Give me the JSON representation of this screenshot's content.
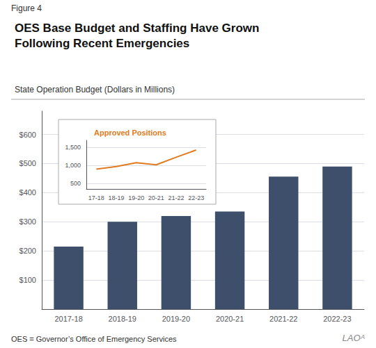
{
  "chart_data": [
    {
      "type": "bar",
      "title": "OES Base Budget and Staffing Have Grown\nFollowing Recent Emergencies",
      "subtitle": "State Operation Budget (Dollars in Millions)",
      "annotations": [
        "Figure 4",
        "OES = Governor’s Office of Emergency Services",
        "LAOᴬ"
      ],
      "categories": [
        "2017-18",
        "2018-19",
        "2019-20",
        "2020-21",
        "2021-22",
        "2022-23"
      ],
      "values": [
        215,
        300,
        320,
        335,
        455,
        490
      ],
      "color": "#3d4f6b",
      "ylim": [
        0,
        680
      ],
      "yticks": [
        {
          "value": 100,
          "label": "$100"
        },
        {
          "value": 200,
          "label": "$200"
        },
        {
          "value": 300,
          "label": "$300"
        },
        {
          "value": 400,
          "label": "$400"
        },
        {
          "value": 500,
          "label": "$500"
        },
        {
          "value": 600,
          "label": "$600"
        }
      ],
      "grid": true
    },
    {
      "type": "line",
      "title": "Approved Positions",
      "categories": [
        "17-18",
        "18-19",
        "19-20",
        "20-21",
        "21-22",
        "22-23"
      ],
      "values": [
        900,
        970,
        1080,
        1020,
        1230,
        1430
      ],
      "color": "#e07b20",
      "ylim": [
        350,
        1700
      ],
      "yticks": [
        500,
        {
          "value": 1000,
          "label": "1,000"
        },
        {
          "value": 1500,
          "label": "1,500"
        }
      ],
      "grid": true
    }
  ]
}
